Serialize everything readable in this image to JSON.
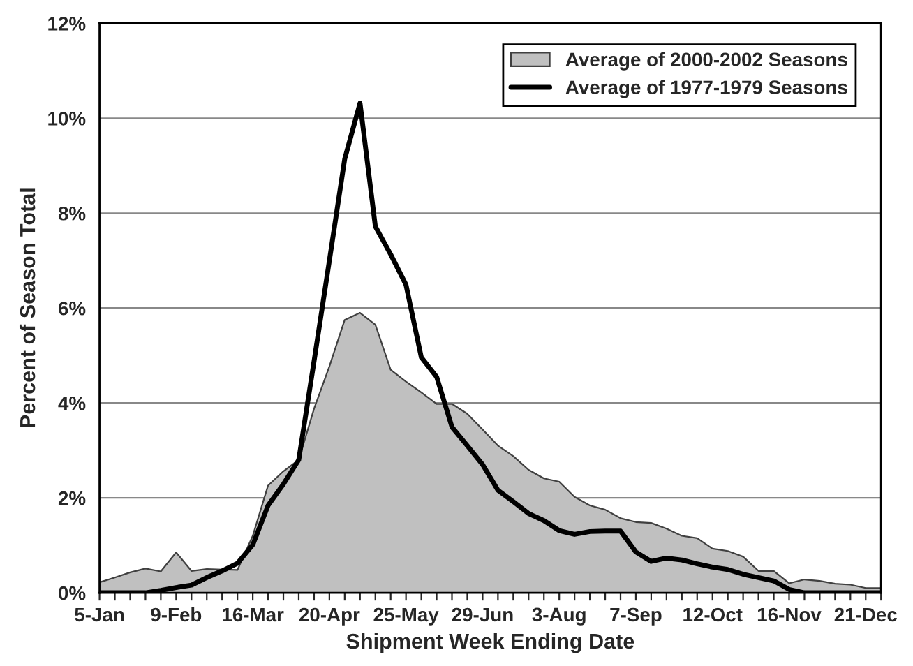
{
  "chart_data": {
    "type": "area",
    "xlabel": "Shipment Week Ending Date",
    "ylabel": "Percent of Season Total",
    "categories": [
      "5-Jan",
      null,
      null,
      null,
      null,
      "9-Feb",
      null,
      null,
      null,
      null,
      "16-Mar",
      null,
      null,
      null,
      null,
      "20-Apr",
      null,
      null,
      null,
      null,
      "25-May",
      null,
      null,
      null,
      null,
      "29-Jun",
      null,
      null,
      null,
      null,
      "3-Aug",
      null,
      null,
      null,
      null,
      "7-Sep",
      null,
      null,
      null,
      null,
      "12-Oct",
      null,
      null,
      null,
      null,
      "16-Nov",
      null,
      null,
      null,
      null,
      "21-Dec",
      null
    ],
    "series": [
      {
        "name": "Average of 2000-2002 Seasons",
        "color": "#c0c0c0",
        "values": [
          0.22,
          0.32,
          0.43,
          0.51,
          0.45,
          0.85,
          0.46,
          0.5,
          0.49,
          0.48,
          1.2,
          2.26,
          2.56,
          2.8,
          3.88,
          4.77,
          5.75,
          5.9,
          5.65,
          4.7,
          4.45,
          4.22,
          3.98,
          3.98,
          3.77,
          3.44,
          3.1,
          2.88,
          2.59,
          2.41,
          2.34,
          2.02,
          1.84,
          1.75,
          1.57,
          1.49,
          1.47,
          1.35,
          1.2,
          1.15,
          0.93,
          0.88,
          0.76,
          0.46,
          0.46,
          0.2,
          0.28,
          0.25,
          0.19,
          0.17,
          0.1,
          0.1
        ]
      },
      {
        "name": "Average of 1977-1979 Seasons",
        "type": "line",
        "color": "#000000",
        "values": [
          0,
          0,
          0,
          0,
          0.05,
          0.11,
          0.16,
          0.32,
          0.46,
          0.62,
          1.01,
          1.84,
          2.29,
          2.8,
          4.88,
          7.0,
          9.14,
          10.32,
          7.72,
          7.13,
          6.49,
          4.96,
          4.55,
          3.49,
          3.1,
          2.7,
          2.16,
          1.92,
          1.67,
          1.52,
          1.31,
          1.23,
          1.29,
          1.3,
          1.3,
          0.86,
          0.66,
          0.73,
          0.69,
          0.61,
          0.54,
          0.49,
          0.39,
          0.32,
          0.25,
          0.07,
          0,
          0,
          0,
          0,
          0,
          0
        ]
      }
    ],
    "ylim": [
      0,
      12
    ],
    "yticks": [
      {
        "value": 0,
        "label": "0%"
      },
      {
        "value": 2,
        "label": "2%"
      },
      {
        "value": 4,
        "label": "4%"
      },
      {
        "value": 6,
        "label": "6%"
      },
      {
        "value": 8,
        "label": "8%"
      },
      {
        "value": 10,
        "label": "10%"
      },
      {
        "value": 12,
        "label": "12%"
      }
    ],
    "grid": "y",
    "legend": "top right"
  }
}
